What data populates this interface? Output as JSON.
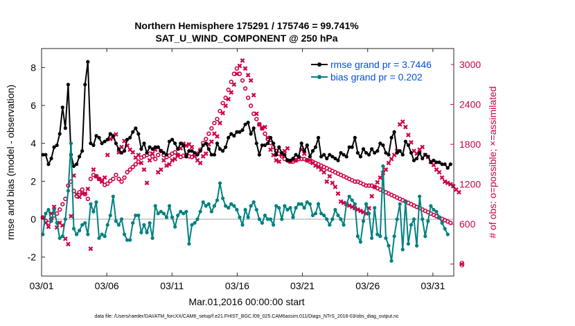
{
  "chart_data": {
    "type": "line",
    "title": "Northern Hemisphere 175291 / 175746 = 99.741%",
    "subtitle": "SAT_U_WIND_COMPONENT @ 250 hPa",
    "xlabel": "Mar.01,2016 00:00:00 start",
    "ylabel": "rmse and bias (model - observation)",
    "y2label": "# of obs: o=possible; ×=assimilated",
    "xlim": [
      0,
      31.6
    ],
    "ylim": [
      -3,
      9
    ],
    "y2lim": [
      -180,
      3240
    ],
    "x_ticks": [
      {
        "value": 0,
        "label": "03/01"
      },
      {
        "value": 5,
        "label": "03/06"
      },
      {
        "value": 10,
        "label": "03/11"
      },
      {
        "value": 15,
        "label": "03/16"
      },
      {
        "value": 20,
        "label": "03/21"
      },
      {
        "value": 25,
        "label": "03/26"
      },
      {
        "value": 30,
        "label": "03/31"
      }
    ],
    "y_ticks": [
      {
        "value": -2,
        "label": "-2"
      },
      {
        "value": 0,
        "label": "0"
      },
      {
        "value": 2,
        "label": "2"
      },
      {
        "value": 4,
        "label": "4"
      },
      {
        "value": 6,
        "label": "6"
      },
      {
        "value": 8,
        "label": "8"
      }
    ],
    "y2_ticks": [
      {
        "value": 0,
        "label": "0"
      },
      {
        "value": 600,
        "label": "600"
      },
      {
        "value": 1200,
        "label": "1200"
      },
      {
        "value": 1800,
        "label": "1800"
      },
      {
        "value": 2400,
        "label": "2400"
      },
      {
        "value": 3000,
        "label": "3000"
      }
    ],
    "grid": false,
    "legend": "top-right",
    "series": [
      {
        "name": "rmse grand pr = 3.7446",
        "color": "#000000",
        "axis": "left",
        "values": [
          3.4,
          3.4,
          2.9,
          3.2,
          3.8,
          3.9,
          4.5,
          5.9,
          4.8,
          7.1,
          3.4,
          2.8,
          2.9,
          3.3,
          3.6,
          7.1,
          8.3,
          4.0,
          3.9,
          4.4,
          4.3,
          4.0,
          4.1,
          4.2,
          4.5,
          4.4,
          4.0,
          3.7,
          3.5,
          3.6,
          4.2,
          4.3,
          4.6,
          4.8,
          4.5,
          3.7,
          4.0,
          3.5,
          3.8,
          3.7,
          3.8,
          3.8,
          3.6,
          3.5,
          3.4,
          4.1,
          4.2,
          4.0,
          3.7,
          4.0,
          3.9,
          3.3,
          3.6,
          3.6,
          3.5,
          3.4,
          3.6,
          3.9,
          4.0,
          3.7,
          3.4,
          3.4,
          4.0,
          3.7,
          3.6,
          3.8,
          4.3,
          4.5,
          4.4,
          4.6,
          4.6,
          4.7,
          5.0,
          5.1,
          4.5,
          4.8,
          4.0,
          3.4,
          3.9,
          3.9,
          4.0,
          4.3,
          4.0,
          3.4,
          3.8,
          3.5,
          3.4,
          3.1,
          3.1,
          3.2,
          3.4,
          3.3,
          4.0,
          3.6,
          3.9,
          3.3,
          3.6,
          3.8,
          4.3,
          3.3,
          3.4,
          3.2,
          3.4,
          3.3,
          3.2,
          3.1,
          3.5,
          3.4,
          3.3,
          3.8,
          3.8,
          4.3,
          3.5,
          3.3,
          3.7,
          3.5,
          3.4,
          3.7,
          3.5,
          3.6,
          4.0,
          3.9,
          3.5,
          3.4,
          4.3,
          4.6,
          3.5,
          3.6,
          3.4,
          4.1,
          3.9,
          3.5,
          3.1,
          3.2,
          3.5,
          3.2,
          3.4,
          3.3,
          3.0,
          3.1,
          3.0,
          3.0,
          2.9,
          2.9,
          2.7,
          2.9
        ]
      },
      {
        "name": "bias grand pr = 0.202",
        "color": "#008080",
        "axis": "left",
        "values": [
          -0.8,
          0.3,
          0.5,
          -0.1,
          0.5,
          -0.2,
          -1.0,
          -0.9,
          0.0,
          1.5,
          4.0,
          -0.5,
          -0.8,
          -0.6,
          -0.3,
          -0.2,
          -0.8,
          0.8,
          0.4,
          0.9,
          -1.0,
          -0.8,
          -0.9,
          -0.3,
          0.2,
          1.2,
          -0.1,
          -0.3,
          0.0,
          -0.8,
          -1.1,
          -1.1,
          -0.2,
          0.2,
          0.2,
          -0.7,
          -0.3,
          -0.7,
          -0.2,
          -1.0,
          0.7,
          0.3,
          0.4,
          0.3,
          0.1,
          0.7,
          0.1,
          -0.4,
          0.2,
          0.4,
          0.3,
          0.4,
          -1.3,
          -0.3,
          -0.2,
          0.0,
          0.4,
          0.9,
          0.7,
          0.8,
          0.4,
          0.7,
          1.0,
          1.9,
          1.1,
          0.7,
          0.6,
          0.8,
          0.7,
          0.5,
          0.1,
          -0.3,
          0.5,
          0.1,
          0.7,
          0.9,
          0.5,
          0.0,
          -0.2,
          0.2,
          0.0,
          0.0,
          -0.3,
          0.7,
          0.6,
          0.0,
          0.7,
          0.5,
          0.6,
          0.1,
          0.6,
          0.8,
          0.8,
          0.6,
          0.9,
          0.8,
          0.2,
          0.3,
          0.8,
          0.3,
          0.2,
          0.0,
          -0.3,
          0.0,
          0.5,
          0.2,
          0.0,
          -0.3,
          0.8,
          1.2,
          1.0,
          0.8,
          -0.9,
          -1.2,
          -0.1,
          0.8,
          0.3,
          -1.0,
          0.6,
          -0.8,
          -0.9,
          2.8,
          -1.0,
          -1.4,
          -2.2,
          -0.9,
          0.0,
          0.8,
          -1.6,
          0.9,
          -1.3,
          -0.3,
          0.0,
          -1.4,
          1.2,
          0.0,
          -0.9,
          -0.1,
          0.7,
          0.5,
          0.4,
          0.1,
          -0.2,
          -0.5,
          -0.8
        ]
      }
    ],
    "counts_possible": {
      "marker": "o",
      "color": "#cc0044",
      "axis": "right",
      "values": [
        700,
        650,
        620,
        680,
        730,
        760,
        820,
        900,
        980,
        1180,
        1240,
        1100,
        1020,
        1080,
        1120,
        1050,
        980,
        1280,
        1340,
        1320,
        1280,
        1250,
        1190,
        1210,
        1250,
        1280,
        1340,
        1280,
        1240,
        1300,
        1380,
        1420,
        1460,
        1500,
        1540,
        1600,
        1620,
        1640,
        1660,
        1620,
        1580,
        1640,
        1700,
        1640,
        1610,
        1630,
        1660,
        1680,
        1640,
        1610,
        1630,
        1640,
        1620,
        1610,
        1640,
        1660,
        1720,
        1820,
        1880,
        1960,
        2040,
        2120,
        2180,
        2300,
        2420,
        2500,
        2620,
        2740,
        2860,
        2940,
        2860,
        2760,
        2640,
        2500,
        2380,
        2260,
        2180,
        2100,
        2040,
        1960,
        1880,
        1820,
        1760,
        1700,
        1660,
        1620,
        1580,
        1560,
        1540,
        1540,
        1560,
        1580,
        1580,
        1580,
        1560,
        1540,
        1540,
        1520,
        1500,
        1480,
        1460,
        1440,
        1420,
        1400,
        1380,
        1360,
        1340,
        1320,
        1300,
        1280,
        1260,
        1240,
        1240,
        1220,
        1200,
        1180,
        1180,
        1180,
        1160,
        1140,
        1120,
        1100,
        1080,
        1060,
        1040,
        1020,
        1000,
        980,
        960,
        940,
        920,
        900,
        880,
        860,
        840,
        820,
        800,
        780,
        760,
        740,
        720,
        700,
        680,
        660,
        640,
        620
      ]
    },
    "counts_assimilated": {
      "marker": "x",
      "color": "#cc0044",
      "axis": "right",
      "values": [
        700,
        620,
        560,
        760,
        860,
        550,
        620,
        580,
        380,
        300,
        720,
        1330,
        1050,
        1010,
        1060,
        1060,
        1130,
        230,
        1420,
        1320,
        1280,
        1240,
        1300,
        1640,
        1880,
        1900,
        1950,
        1680,
        1760,
        1850,
        1780,
        1720,
        1680,
        1600,
        1640,
        1520,
        1420,
        1220,
        1560,
        1660,
        1720,
        1380,
        1420,
        1560,
        1480,
        1500,
        1560,
        1580,
        1640,
        1740,
        1810,
        1780,
        1800,
        1760,
        1620,
        1560,
        1520,
        1620,
        1660,
        1800,
        1840,
        1960,
        1920,
        2120,
        2270,
        2380,
        2480,
        2580,
        2700,
        2860,
        2980,
        3060,
        2940,
        2840,
        2760,
        2540,
        2260,
        2100,
        2040,
        2060,
        1900,
        1720,
        1640,
        1560,
        1540,
        1640,
        1700,
        1740,
        1540,
        1560,
        1560,
        1600,
        1720,
        1660,
        1560,
        1560,
        1520,
        1480,
        1460,
        1420,
        1380,
        1240,
        1320,
        1220,
        1160,
        1060,
        940,
        920,
        900,
        880,
        860,
        840,
        820,
        800,
        780,
        760,
        840,
        1020,
        1160,
        1230,
        1300,
        1370,
        1420,
        1520,
        1580,
        1640,
        1700,
        2100,
        2140,
        2060,
        1940,
        1830,
        1700,
        1660,
        1720,
        1760,
        1640,
        1610,
        1540,
        1490,
        1420,
        1380,
        1300,
        1240,
        1220,
        1200,
        1170,
        1120,
        1080,
        0
      ]
    },
    "zero_line_color": "#c0c0c0",
    "footer": "data file: /Users/raeder/DAI/ATM_forcXX/CAM6_setup/f.e21.FHIST_BGC.f09_025.CAM6assim.011/Diags_NTrS_2016-03/obs_diag_output.nc"
  }
}
